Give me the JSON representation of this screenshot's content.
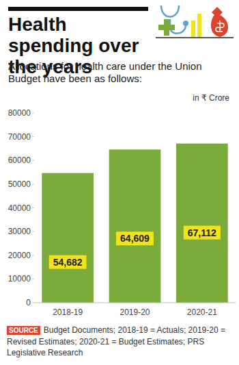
{
  "chart_data": {
    "type": "bar",
    "title": "Health spending over the years",
    "subtitle": "Allocations for health care under the Union Budget have been as follows:",
    "unit": "in ₹ Crore",
    "categories": [
      "2018-19",
      "2019-20",
      "2020-21"
    ],
    "values": [
      54682,
      64609,
      67112
    ],
    "value_labels": [
      "54,682",
      "64,609",
      "67,112"
    ],
    "color": "#7bab3b",
    "ylim": [
      0,
      80000
    ],
    "yticks": [
      0,
      10000,
      20000,
      30000,
      40000,
      50000,
      60000,
      70000,
      80000
    ],
    "grid": false,
    "data_labels": true,
    "source_label": "SOURCE",
    "source": "Budget Documents; 2018-19 = Actuals; 2019-20 = Revised Estimates; 2020-21 = Budget Estimates; PRS Legislative Research"
  }
}
